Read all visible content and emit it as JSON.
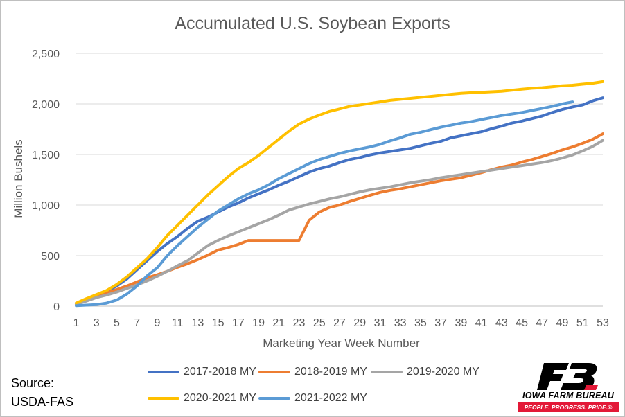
{
  "source": {
    "line1": "Source:",
    "line2": "USDA-FAS"
  },
  "logo": {
    "name": "IOWA FARM BUREAU",
    "tagline": "PEOPLE. PROGRESS. PRIDE.®",
    "icon": "farm-bureau-fb-logo"
  },
  "chart_data": {
    "type": "line",
    "title": "Accumulated U.S. Soybean Exports",
    "xlabel": "Marketing Year Week Number",
    "ylabel": "Million Bushels",
    "xlim": [
      1,
      53
    ],
    "ylim": [
      0,
      2500
    ],
    "yticks": [
      0,
      500,
      1000,
      1500,
      2000,
      2500
    ],
    "ytick_labels": [
      "0",
      "500",
      "1,000",
      "1,500",
      "2,000",
      "2,500"
    ],
    "xticks": [
      1,
      3,
      5,
      7,
      9,
      11,
      13,
      15,
      17,
      19,
      21,
      23,
      25,
      27,
      29,
      31,
      33,
      35,
      37,
      39,
      41,
      43,
      45,
      47,
      49,
      51,
      53
    ],
    "grid": "horizontal",
    "legend_position": "bottom",
    "series": [
      {
        "name": "2017-2018 MY",
        "color": "#4472c4",
        "x_start": 1,
        "values": [
          20,
          60,
          110,
          145,
          200,
          270,
          360,
          450,
          540,
          620,
          690,
          770,
          840,
          880,
          930,
          980,
          1020,
          1070,
          1110,
          1150,
          1195,
          1235,
          1280,
          1325,
          1360,
          1385,
          1420,
          1450,
          1470,
          1495,
          1515,
          1530,
          1545,
          1560,
          1585,
          1610,
          1630,
          1665,
          1685,
          1705,
          1725,
          1755,
          1780,
          1810,
          1830,
          1855,
          1880,
          1915,
          1945,
          1970,
          1990,
          2030,
          2060
        ]
      },
      {
        "name": "2018-2019 MY",
        "color": "#ed7d31",
        "x_start": 1,
        "values": [
          20,
          60,
          95,
          130,
          165,
          200,
          240,
          280,
          310,
          345,
          385,
          420,
          460,
          505,
          555,
          580,
          610,
          650,
          650,
          650,
          650,
          650,
          650,
          850,
          930,
          975,
          1000,
          1035,
          1065,
          1095,
          1125,
          1145,
          1160,
          1180,
          1200,
          1220,
          1240,
          1255,
          1270,
          1295,
          1320,
          1350,
          1375,
          1395,
          1425,
          1450,
          1480,
          1510,
          1545,
          1575,
          1610,
          1650,
          1705
        ]
      },
      {
        "name": "2019-2020 MY",
        "color": "#a5a5a5",
        "x_start": 1,
        "values": [
          20,
          50,
          85,
          110,
          140,
          175,
          210,
          250,
          295,
          345,
          400,
          450,
          525,
          600,
          650,
          695,
          735,
          775,
          815,
          855,
          900,
          950,
          980,
          1010,
          1035,
          1060,
          1080,
          1105,
          1130,
          1150,
          1165,
          1180,
          1200,
          1220,
          1235,
          1250,
          1270,
          1285,
          1300,
          1315,
          1330,
          1345,
          1360,
          1375,
          1390,
          1405,
          1420,
          1440,
          1465,
          1495,
          1535,
          1580,
          1640
        ]
      },
      {
        "name": "2020-2021 MY",
        "color": "#ffc000",
        "x_start": 1,
        "values": [
          30,
          75,
          115,
          155,
          215,
          290,
          380,
          470,
          580,
          700,
          800,
          900,
          1000,
          1100,
          1190,
          1280,
          1360,
          1420,
          1490,
          1570,
          1650,
          1730,
          1800,
          1850,
          1890,
          1925,
          1950,
          1975,
          1990,
          2005,
          2020,
          2035,
          2045,
          2055,
          2065,
          2075,
          2085,
          2095,
          2105,
          2110,
          2115,
          2120,
          2125,
          2135,
          2145,
          2155,
          2160,
          2170,
          2180,
          2185,
          2195,
          2205,
          2220
        ]
      },
      {
        "name": "2021-2022 MY",
        "color": "#5b9bd5",
        "x_start": 1,
        "values": [
          5,
          10,
          15,
          30,
          60,
          120,
          200,
          300,
          380,
          500,
          600,
          690,
          780,
          860,
          940,
          1000,
          1060,
          1110,
          1150,
          1200,
          1260,
          1310,
          1360,
          1410,
          1450,
          1480,
          1510,
          1535,
          1555,
          1575,
          1600,
          1635,
          1665,
          1700,
          1720,
          1745,
          1770,
          1790,
          1810,
          1825,
          1845,
          1865,
          1885,
          1900,
          1915,
          1935,
          1955,
          1975,
          2000,
          2020
        ]
      }
    ]
  }
}
